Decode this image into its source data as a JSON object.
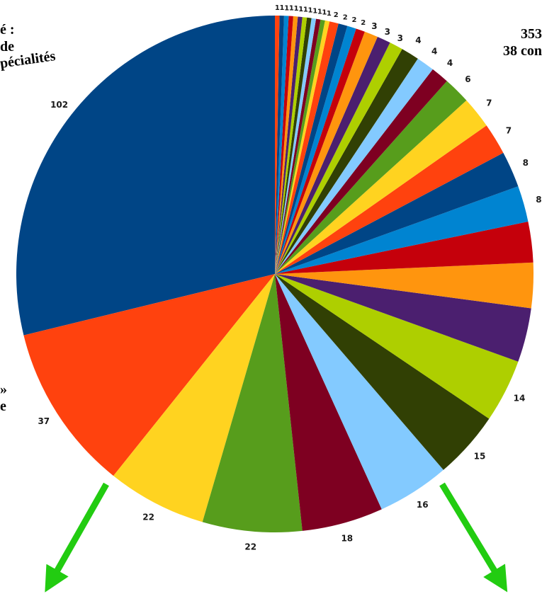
{
  "annotations": {
    "left": [
      "é :",
      "de",
      "pécialités"
    ],
    "right": [
      "353",
      "38 con"
    ],
    "middle_left": [
      "»",
      "e"
    ]
  },
  "colors": {
    "palette": [
      "#004586",
      "#ff420e",
      "#ffd320",
      "#579d1c",
      "#7e0021",
      "#83caff",
      "#314004",
      "#aecf00",
      "#4b1f6f",
      "#ff950e",
      "#c5000b",
      "#0084d1"
    ],
    "arrow": "#22cc11"
  },
  "chart_data": {
    "type": "pie",
    "start": "top",
    "direction": "counter-clockwise",
    "values": [
      102,
      37,
      22,
      22,
      18,
      16,
      15,
      14,
      12,
      10,
      9,
      8,
      8,
      7,
      7,
      6,
      4,
      4,
      4,
      3,
      3,
      3,
      2,
      2,
      2,
      2,
      1,
      1,
      1,
      1,
      1,
      1,
      1,
      1,
      1,
      1,
      1,
      1
    ],
    "data_labels": [
      "102",
      "37",
      "22",
      "22",
      "18",
      "16",
      "15",
      "14",
      "",
      "",
      "",
      "8",
      "8",
      "7",
      "7",
      "6",
      "4",
      "4",
      "4",
      "3",
      "3",
      "3",
      "2",
      "2",
      "2",
      "2",
      "1",
      "1",
      "1",
      "1",
      "1",
      "1",
      "1",
      "1",
      "1",
      "1",
      "1",
      "1"
    ]
  }
}
